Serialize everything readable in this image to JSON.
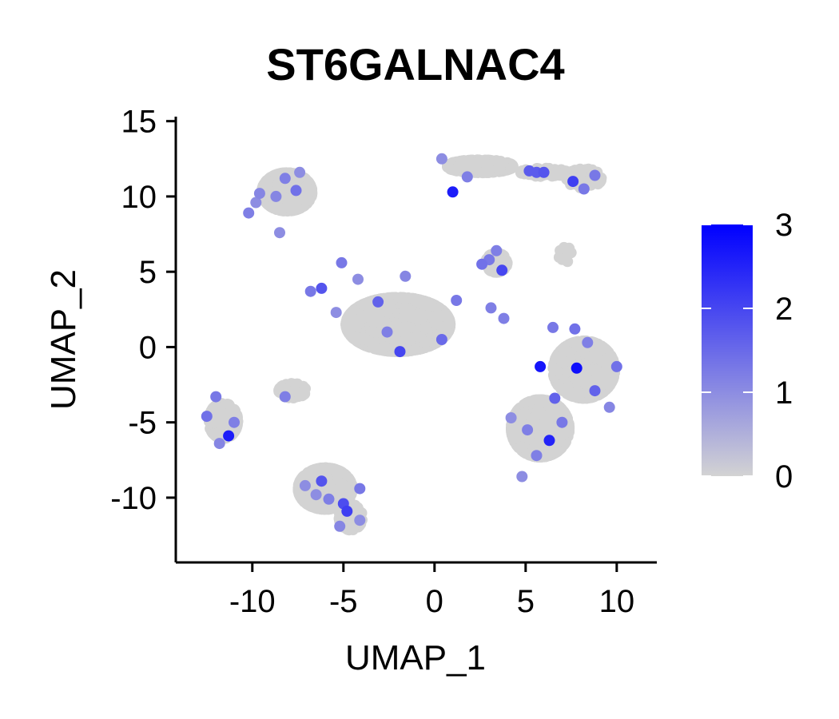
{
  "chart_data": {
    "type": "scatter",
    "title": "ST6GALNAC4",
    "xlabel": "UMAP_1",
    "ylabel": "UMAP_2",
    "xlim": [
      -14.2,
      12.2
    ],
    "ylim": [
      -14.3,
      15.3
    ],
    "xticks": [
      -10,
      -5,
      0,
      5,
      10
    ],
    "xtick_labels": [
      "-10",
      "-5",
      "0",
      "5",
      "10"
    ],
    "yticks": [
      -10,
      -5,
      0,
      5,
      10,
      15
    ],
    "ytick_labels": [
      "-10",
      "-5",
      "0",
      "5",
      "10",
      "15"
    ],
    "grid": false,
    "legend": {
      "type": "colorbar",
      "placement": "right",
      "min": 0,
      "max": 3,
      "ticks": [
        0,
        1,
        2,
        3
      ],
      "tick_labels": [
        "0",
        "1",
        "2",
        "3"
      ],
      "low_color": "#d3d3d3",
      "high_color": "#0000ff"
    },
    "clusters": [
      {
        "center": [
          -8.1,
          10.3
        ],
        "spread": [
          1.3,
          1.2
        ],
        "count": 500
      },
      {
        "center": [
          -2.0,
          1.5
        ],
        "spread": [
          2.7,
          1.7
        ],
        "count": 1400
      },
      {
        "center": [
          2.5,
          12.0
        ],
        "spread": [
          1.7,
          0.4
        ],
        "count": 320
      },
      {
        "center": [
          6.0,
          11.6
        ],
        "spread": [
          1.2,
          0.25
        ],
        "count": 80
      },
      {
        "center": [
          8.2,
          11.2
        ],
        "spread": [
          0.9,
          0.6
        ],
        "count": 90
      },
      {
        "center": [
          3.4,
          5.6
        ],
        "spread": [
          0.55,
          0.6
        ],
        "count": 110
      },
      {
        "center": [
          7.2,
          6.1
        ],
        "spread": [
          0.35,
          0.5
        ],
        "count": 14
      },
      {
        "center": [
          -11.6,
          -4.9
        ],
        "spread": [
          0.75,
          1.1
        ],
        "count": 220
      },
      {
        "center": [
          -6.0,
          -9.4
        ],
        "spread": [
          1.4,
          1.3
        ],
        "count": 500
      },
      {
        "center": [
          -4.6,
          -11.3
        ],
        "spread": [
          0.6,
          0.8
        ],
        "count": 120
      },
      {
        "center": [
          8.2,
          -1.5
        ],
        "spread": [
          1.6,
          1.8
        ],
        "count": 500
      },
      {
        "center": [
          5.8,
          -5.4
        ],
        "spread": [
          1.5,
          1.8
        ],
        "count": 650
      },
      {
        "center": [
          -7.8,
          -2.9
        ],
        "spread": [
          0.7,
          0.45
        ],
        "count": 90
      }
    ],
    "expressing_points": [
      {
        "x": -10.2,
        "y": 8.9,
        "value": 1.2
      },
      {
        "x": -9.8,
        "y": 9.6,
        "value": 1.0
      },
      {
        "x": -8.7,
        "y": 10.0,
        "value": 1.1
      },
      {
        "x": -7.6,
        "y": 10.4,
        "value": 1.4
      },
      {
        "x": -8.5,
        "y": 7.6,
        "value": 1.0
      },
      {
        "x": -7.4,
        "y": 11.6,
        "value": 1.0
      },
      {
        "x": -8.2,
        "y": 11.2,
        "value": 1.2
      },
      {
        "x": -9.6,
        "y": 10.2,
        "value": 1.1
      },
      {
        "x": -5.1,
        "y": 5.6,
        "value": 1.3
      },
      {
        "x": -6.8,
        "y": 3.7,
        "value": 1.3
      },
      {
        "x": -6.2,
        "y": 3.9,
        "value": 1.8
      },
      {
        "x": -3.1,
        "y": 3.0,
        "value": 1.6
      },
      {
        "x": -2.6,
        "y": 1.0,
        "value": 1.2
      },
      {
        "x": -1.9,
        "y": -0.3,
        "value": 2.0
      },
      {
        "x": -1.6,
        "y": 4.7,
        "value": 1.1
      },
      {
        "x": 1.2,
        "y": 3.1,
        "value": 1.3
      },
      {
        "x": -5.4,
        "y": 2.3,
        "value": 1.0
      },
      {
        "x": 0.4,
        "y": 0.5,
        "value": 1.5
      },
      {
        "x": -4.2,
        "y": 4.5,
        "value": 1.0
      },
      {
        "x": 1.0,
        "y": 10.3,
        "value": 2.6
      },
      {
        "x": 0.4,
        "y": 12.5,
        "value": 1.0
      },
      {
        "x": 1.8,
        "y": 11.3,
        "value": 1.2
      },
      {
        "x": 5.2,
        "y": 11.7,
        "value": 1.7
      },
      {
        "x": 5.6,
        "y": 11.6,
        "value": 1.7
      },
      {
        "x": 6.0,
        "y": 11.6,
        "value": 1.8
      },
      {
        "x": 7.6,
        "y": 11.0,
        "value": 2.1
      },
      {
        "x": 8.2,
        "y": 10.5,
        "value": 1.3
      },
      {
        "x": 8.8,
        "y": 11.4,
        "value": 1.3
      },
      {
        "x": 3.0,
        "y": 5.8,
        "value": 1.3
      },
      {
        "x": 3.7,
        "y": 5.1,
        "value": 2.0
      },
      {
        "x": 3.4,
        "y": 6.4,
        "value": 1.2
      },
      {
        "x": 2.6,
        "y": 5.5,
        "value": 1.4
      },
      {
        "x": 3.1,
        "y": 2.6,
        "value": 1.2
      },
      {
        "x": 3.8,
        "y": 1.9,
        "value": 1.2
      },
      {
        "x": 5.8,
        "y": -1.3,
        "value": 2.7
      },
      {
        "x": 6.5,
        "y": 1.3,
        "value": 1.3
      },
      {
        "x": 7.7,
        "y": 1.2,
        "value": 1.4
      },
      {
        "x": 7.8,
        "y": -1.4,
        "value": 2.8
      },
      {
        "x": 8.8,
        "y": -2.9,
        "value": 1.6
      },
      {
        "x": 10.0,
        "y": -1.3,
        "value": 1.4
      },
      {
        "x": 8.4,
        "y": 0.3,
        "value": 1.2
      },
      {
        "x": 9.6,
        "y": -4.0,
        "value": 1.1
      },
      {
        "x": 6.3,
        "y": -6.2,
        "value": 2.5
      },
      {
        "x": 5.1,
        "y": -5.5,
        "value": 1.2
      },
      {
        "x": 6.6,
        "y": -3.4,
        "value": 1.6
      },
      {
        "x": 4.8,
        "y": -8.6,
        "value": 1.0
      },
      {
        "x": 5.6,
        "y": -7.2,
        "value": 1.2
      },
      {
        "x": 4.2,
        "y": -4.7,
        "value": 1.0
      },
      {
        "x": 7.0,
        "y": -5.0,
        "value": 1.3
      },
      {
        "x": -12.5,
        "y": -4.6,
        "value": 1.4
      },
      {
        "x": -11.3,
        "y": -5.9,
        "value": 2.6
      },
      {
        "x": -12.0,
        "y": -3.3,
        "value": 1.3
      },
      {
        "x": -11.0,
        "y": -5.0,
        "value": 1.2
      },
      {
        "x": -11.8,
        "y": -6.4,
        "value": 1.1
      },
      {
        "x": -6.2,
        "y": -8.9,
        "value": 1.8
      },
      {
        "x": -5.8,
        "y": -10.1,
        "value": 1.2
      },
      {
        "x": -5.0,
        "y": -10.4,
        "value": 1.9
      },
      {
        "x": -4.8,
        "y": -10.9,
        "value": 2.1
      },
      {
        "x": -6.5,
        "y": -9.8,
        "value": 1.0
      },
      {
        "x": -4.1,
        "y": -9.4,
        "value": 1.3
      },
      {
        "x": -5.2,
        "y": -11.9,
        "value": 1.1
      },
      {
        "x": -7.1,
        "y": -9.2,
        "value": 1.0
      },
      {
        "x": -8.2,
        "y": -3.3,
        "value": 1.2
      },
      {
        "x": -4.1,
        "y": -11.5,
        "value": 1.0
      }
    ]
  }
}
